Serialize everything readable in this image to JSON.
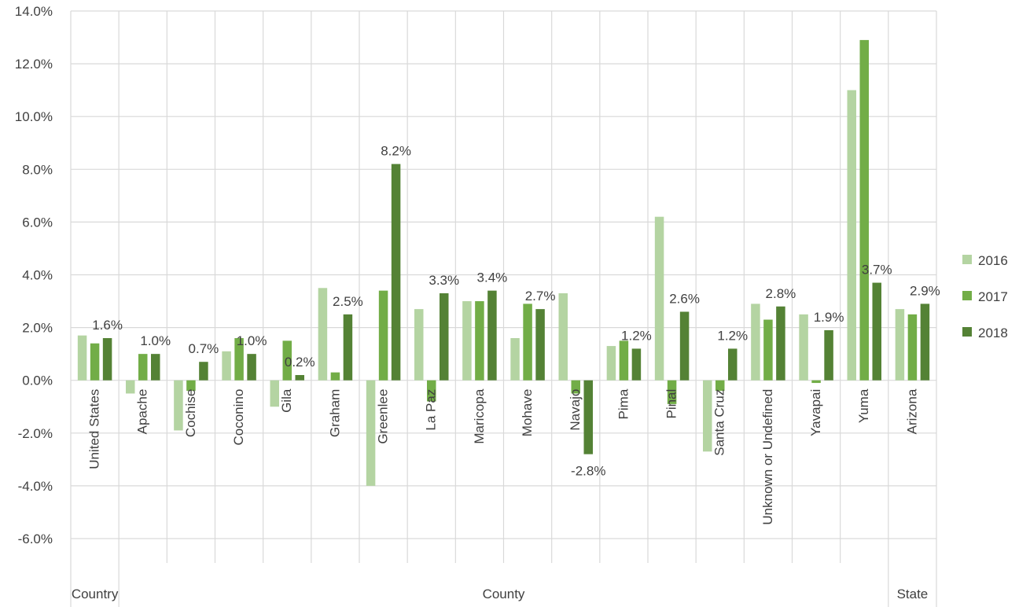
{
  "chart_data": {
    "type": "bar",
    "categories": [
      "United States",
      "Apache",
      "Cochise",
      "Coconino",
      "Gila",
      "Graham",
      "Greenlee",
      "La Paz",
      "Maricopa",
      "Mohave",
      "Navajo",
      "Pima",
      "Pinal",
      "Santa Cruz",
      "Unknown or Undefined",
      "Yavapai",
      "Yuma",
      "Arizona"
    ],
    "groups": [
      {
        "label": "Country",
        "from": 0,
        "to": 0
      },
      {
        "label": "County",
        "from": 1,
        "to": 16
      },
      {
        "label": "State",
        "from": 17,
        "to": 17
      }
    ],
    "series": [
      {
        "name": "2016",
        "color": "#b4d4a2",
        "values": [
          1.7,
          -0.5,
          -1.9,
          1.1,
          -1.0,
          3.5,
          -4.0,
          2.7,
          3.0,
          1.6,
          3.3,
          1.3,
          6.2,
          -2.7,
          2.9,
          2.5,
          11.0,
          2.7
        ]
      },
      {
        "name": "2017",
        "color": "#72ad47",
        "values": [
          1.4,
          1.0,
          -0.4,
          1.6,
          1.5,
          0.3,
          3.4,
          -0.8,
          3.0,
          2.9,
          -0.5,
          1.5,
          -0.9,
          -0.4,
          2.3,
          -0.1,
          12.9,
          2.5
        ]
      },
      {
        "name": "2018",
        "color": "#548235",
        "values": [
          1.6,
          1.0,
          0.7,
          1.0,
          0.2,
          2.5,
          8.2,
          3.3,
          3.4,
          2.7,
          -2.8,
          1.2,
          2.6,
          1.2,
          2.8,
          1.9,
          3.7,
          2.9
        ]
      }
    ],
    "data_labels": [
      "1.6%",
      "1.0%",
      "0.7%",
      "1.0%",
      "0.2%",
      "2.5%",
      "8.2%",
      "3.3%",
      "3.4%",
      "2.7%",
      "-2.8%",
      "1.2%",
      "2.6%",
      "1.2%",
      "2.8%",
      "1.9%",
      "3.7%",
      "2.9%"
    ],
    "data_label_series": "2018",
    "y_ticks": [
      "14.0%",
      "12.0%",
      "10.0%",
      "8.0%",
      "6.0%",
      "4.0%",
      "2.0%",
      "0.0%",
      "-2.0%",
      "-4.0%",
      "-6.0%"
    ],
    "ylim": [
      -6,
      14
    ],
    "y_unit": "%",
    "grid": true,
    "legend_position": "right"
  }
}
